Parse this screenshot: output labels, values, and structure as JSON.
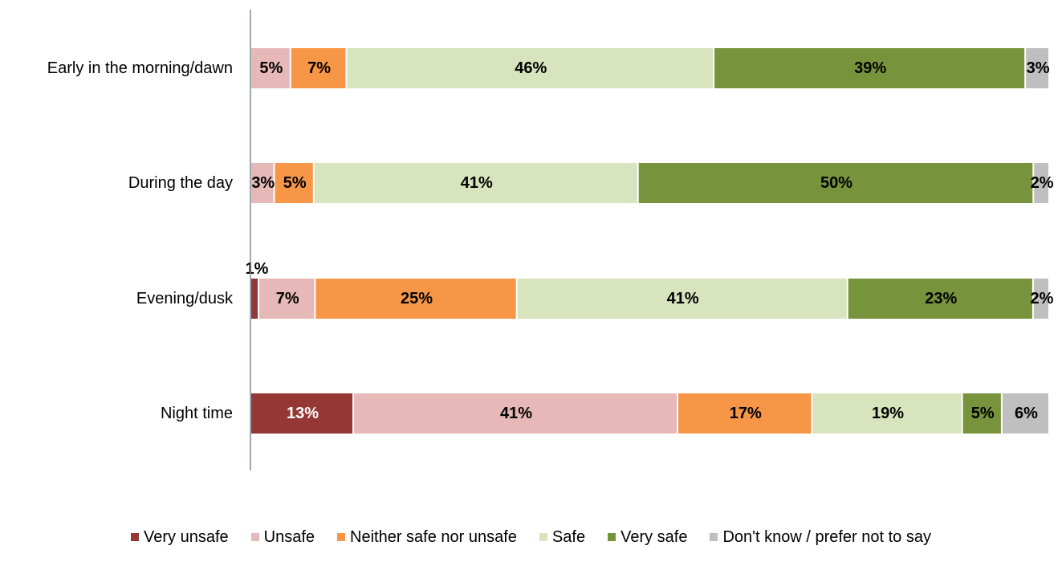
{
  "chart_data": {
    "type": "bar",
    "orientation": "horizontal",
    "stacked": true,
    "categories": [
      "Early in the morning/dawn",
      "During the day",
      "Evening/dusk",
      "Night time"
    ],
    "series": [
      {
        "name": "Very unsafe",
        "color": "#953735",
        "values": [
          0,
          0,
          1,
          13
        ],
        "labels": [
          "",
          "",
          "1%",
          "13%"
        ],
        "label_color": "#ffffff"
      },
      {
        "name": "Unsafe",
        "color": "#e6b9b8",
        "values": [
          5,
          3,
          7,
          41
        ],
        "labels": [
          "5%",
          "3%",
          "7%",
          "41%"
        ],
        "label_color": "#000000"
      },
      {
        "name": "Neither safe nor unsafe",
        "color": "#f79646",
        "values": [
          7,
          5,
          25,
          17
        ],
        "labels": [
          "7%",
          "5%",
          "25%",
          "17%"
        ],
        "label_color": "#000000"
      },
      {
        "name": "Safe",
        "color": "#d7e4bd",
        "values": [
          46,
          41,
          41,
          19
        ],
        "labels": [
          "46%",
          "41%",
          "41%",
          "19%"
        ],
        "label_color": "#000000"
      },
      {
        "name": "Very safe",
        "color": "#77933c",
        "values": [
          39,
          50,
          23,
          5
        ],
        "labels": [
          "39%",
          "50%",
          "23%",
          "5%"
        ],
        "label_color": "#000000"
      },
      {
        "name": "Don't know / prefer not to say",
        "color": "#bfbfbf",
        "values": [
          3,
          2,
          2,
          6
        ],
        "labels": [
          "3%",
          "2%",
          "2%",
          "6%"
        ],
        "label_color": "#000000"
      }
    ],
    "xlim": [
      0,
      100
    ],
    "grid": false,
    "legend_position": "bottom"
  }
}
